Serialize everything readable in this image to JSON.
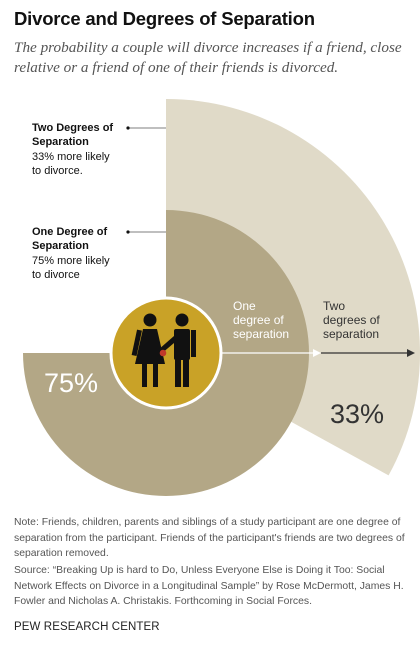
{
  "title": "Divorce and Degrees of Separation",
  "subtitle": "The probability a couple will divorce increases if a friend, close relative or a friend of one of their friends is divorced.",
  "chart_data": {
    "type": "pie",
    "values_unit": "% more likely to divorce",
    "series": [
      {
        "key": "one",
        "annotation_title_line1": "One Degree of",
        "annotation_title_line2": "Separation",
        "annotation_line1": "75% more likely",
        "annotation_line2": "to divorce",
        "arrow_label_line1": "One",
        "arrow_label_line2": "degree of",
        "arrow_label_line3": "separation",
        "value": 75,
        "value_label": "75%",
        "color": "#b3a786"
      },
      {
        "key": "two",
        "annotation_title_line1": "Two Degrees of",
        "annotation_title_line2": "Separation",
        "annotation_line1": "33% more likely",
        "annotation_line2": "to divorce.",
        "arrow_label_line1": "Two",
        "arrow_label_line2": "degrees of",
        "arrow_label_line3": "separation",
        "value": 33,
        "value_label": "33%",
        "color": "#e0dac8"
      }
    ],
    "center_icon": "couple-icon",
    "center_color": "#c9a227"
  },
  "note": "Note: Friends, children, parents and siblings of a study participant are one degree of separation from the participant. Friends of the participant's friends are two degrees of separation removed.",
  "source": "Source:  “Breaking Up is hard to Do, Unless Everyone Else is Doing it Too:  Social Network Effects on Divorce in a Longitudinal Sample” by Rose McDermott, James H. Fowler and Nicholas A. Christakis. Forthcoming in Social Forces.",
  "credit": "PEW RESEARCH CENTER"
}
